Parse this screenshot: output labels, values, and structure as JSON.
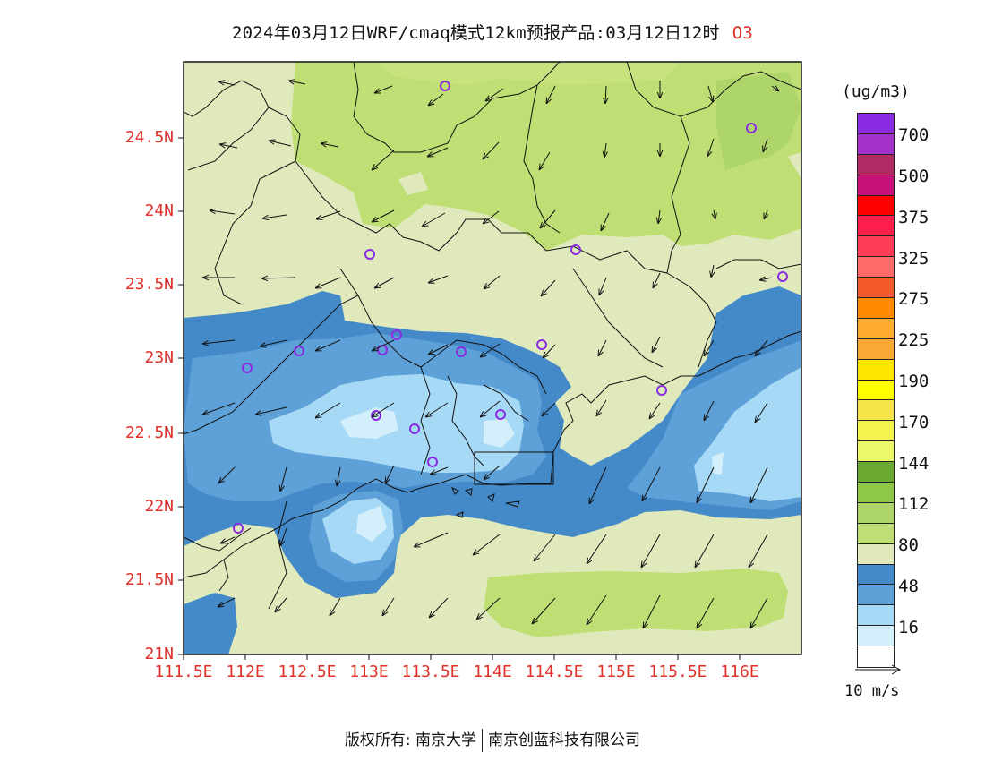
{
  "header": {
    "title": "2024年03月12日WRF/cmaq模式12km预报产品:03月12日12时",
    "species": "O3"
  },
  "map": {
    "lat_labels": [
      "24.5N",
      "24N",
      "23.5N",
      "23N",
      "22.5N",
      "22N",
      "21.5N",
      "21N"
    ],
    "lon_labels": [
      "111.5E",
      "112E",
      "112.5E",
      "113E",
      "113.5E",
      "114E",
      "114.5E",
      "115E",
      "115.5E",
      "116E"
    ],
    "extent": {
      "lon": [
        111.5,
        116.5
      ],
      "lat": [
        21.0,
        24.95
      ]
    }
  },
  "legend": {
    "unit": "(ug/m3)",
    "levels": [
      "700",
      "500",
      "375",
      "325",
      "275",
      "225",
      "190",
      "170",
      "144",
      "112",
      "80",
      "48",
      "16"
    ],
    "colors": [
      "#8a2be2",
      "#a332cc",
      "#b02a63",
      "#c7127a",
      "#ff0000",
      "#ff1f4d",
      "#ff3d56",
      "#ff6a6a",
      "#f25a2c",
      "#ff8a00",
      "#ffad2e",
      "#f8a833",
      "#ffe600",
      "#ffff00",
      "#f7e44a",
      "#f4f24f",
      "#ecf86b",
      "#6aa832",
      "#8dc847",
      "#aed56a",
      "#bfdf74",
      "#dfe9bc",
      "#4489c8",
      "#5ea1d8",
      "#a5d9f5",
      "#d3effc",
      "#ffffff"
    ]
  },
  "wind_reference": {
    "label": "10 m/s"
  },
  "footer": {
    "copyright_left": "版权所有: 南京大学",
    "copyright_right": "南京创蓝科技有限公司"
  }
}
